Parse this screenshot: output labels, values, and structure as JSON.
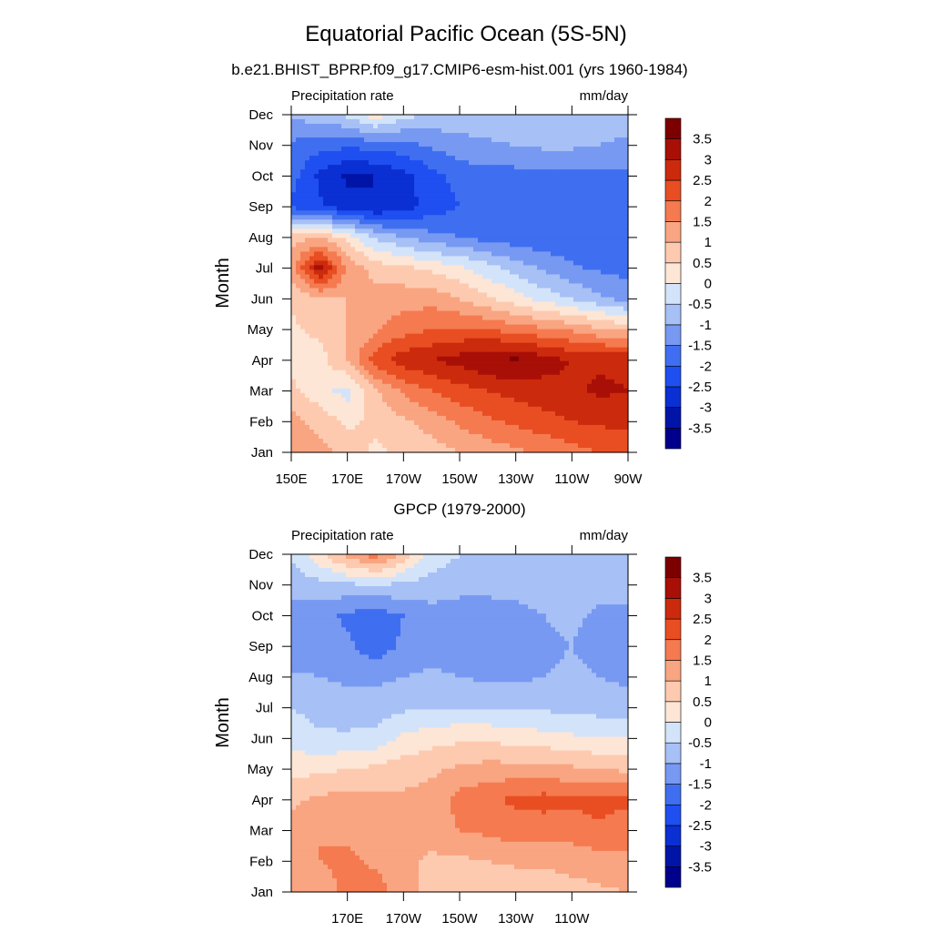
{
  "figure": {
    "title": "Equatorial Pacific Ocean (5S-5N)",
    "subtitle": "b.e21.BHIST_BPRP.f09_g17.CMIP6-esm-hist.001 (yrs 1960-1984)"
  },
  "palette": {
    "levels": [
      -3.5,
      -3,
      -2.5,
      -2,
      -1.5,
      -1,
      -0.5,
      0,
      0.5,
      1,
      1.5,
      2,
      2.5,
      3,
      3.5
    ],
    "level_labels": [
      "-3.5",
      "-3",
      "-2.5",
      "-2",
      "-1.5",
      "-1",
      "-0.5",
      "0",
      "0.5",
      "1",
      "1.5",
      "2",
      "2.5",
      "3",
      "3.5"
    ],
    "colors": [
      "#00008c",
      "#0015a8",
      "#0a2fd2",
      "#1f4ff0",
      "#3f6ff0",
      "#7799f2",
      "#a7c0f5",
      "#d3e4fa",
      "#fde6d6",
      "#fdcab0",
      "#f9a581",
      "#f57a50",
      "#e84e22",
      "#cc2a0c",
      "#a80f06",
      "#7d0000"
    ]
  },
  "chart_data": [
    {
      "type": "heatmap",
      "title": "",
      "left_label": "Precipitation rate",
      "right_label": "mm/day",
      "ylabel": "Month",
      "xlabel": "",
      "xlim": [
        150,
        270
      ],
      "x_ticks": [
        150,
        170,
        190,
        210,
        230,
        250,
        270
      ],
      "x_tick_labels": [
        "150E",
        "170E",
        "170W",
        "150W",
        "130W",
        "110W",
        "90W"
      ],
      "y_tick_labels": [
        "Jan",
        "Feb",
        "Mar",
        "Apr",
        "May",
        "Jun",
        "Jul",
        "Aug",
        "Sep",
        "Oct",
        "Nov",
        "Dec"
      ],
      "units": "mm/day",
      "grid": false,
      "colorbar": "right",
      "x": [
        150,
        160,
        170,
        180,
        190,
        200,
        210,
        220,
        230,
        240,
        250,
        260,
        270
      ],
      "months": [
        "Jan",
        "Feb",
        "Mar",
        "Apr",
        "May",
        "Jun",
        "Jul",
        "Aug",
        "Sep",
        "Oct",
        "Nov",
        "Dec"
      ],
      "z": [
        [
          1.5,
          1.2,
          0.8,
          0.4,
          0.6,
          0.8,
          1.0,
          1.2,
          1.4,
          1.6,
          1.8,
          2.0,
          2.2
        ],
        [
          1.2,
          0.8,
          0.4,
          0.6,
          0.9,
          1.2,
          1.6,
          1.9,
          2.1,
          2.3,
          2.5,
          2.6,
          2.6
        ],
        [
          0.6,
          0.2,
          -0.2,
          0.9,
          1.6,
          2.0,
          2.3,
          2.5,
          2.7,
          2.8,
          2.9,
          3.1,
          3.0
        ],
        [
          0.4,
          0.3,
          1.0,
          2.3,
          2.8,
          3.0,
          3.2,
          3.5,
          3.6,
          3.2,
          3.0,
          2.9,
          2.9
        ],
        [
          0.4,
          0.6,
          1.0,
          1.4,
          1.8,
          2.0,
          2.1,
          2.0,
          1.8,
          1.6,
          1.4,
          1.1,
          0.9
        ],
        [
          0.6,
          0.9,
          1.0,
          1.2,
          1.3,
          1.3,
          1.0,
          0.6,
          0.2,
          -0.2,
          -0.5,
          -0.9,
          -1.2
        ],
        [
          1.2,
          3.3,
          1.4,
          0.8,
          0.6,
          0.4,
          0.1,
          -0.3,
          -0.7,
          -1.1,
          -1.4,
          -1.6,
          -1.7
        ],
        [
          0.8,
          1.0,
          0.3,
          -0.6,
          -1.0,
          -1.3,
          -1.5,
          -1.7,
          -1.8,
          -1.9,
          -1.9,
          -1.9,
          -1.9
        ],
        [
          -2.1,
          -2.4,
          -2.8,
          -3.0,
          -2.7,
          -2.3,
          -2.0,
          -1.9,
          -1.9,
          -1.9,
          -1.9,
          -1.9,
          -1.9
        ],
        [
          -1.8,
          -2.6,
          -3.1,
          -3.0,
          -2.7,
          -2.2,
          -1.8,
          -1.7,
          -1.7,
          -1.7,
          -1.7,
          -1.7,
          -1.6
        ],
        [
          -1.6,
          -1.8,
          -1.9,
          -1.8,
          -1.7,
          -1.4,
          -1.2,
          -1.1,
          -1.0,
          -0.9,
          -0.9,
          -1.0,
          -1.1
        ],
        [
          -0.9,
          -0.7,
          -0.4,
          0.3,
          -0.3,
          -0.6,
          -0.7,
          -0.6,
          -0.5,
          -0.5,
          -0.6,
          -0.7,
          -0.8
        ]
      ]
    },
    {
      "type": "heatmap",
      "title": "GPCP (1979-2000)",
      "left_label": "Precipitation rate",
      "right_label": "mm/day",
      "ylabel": "Month",
      "xlabel": "",
      "xlim": [
        150,
        270
      ],
      "x_ticks": [
        170,
        190,
        210,
        230,
        250
      ],
      "x_tick_labels": [
        "170E",
        "170W",
        "150W",
        "130W",
        "110W"
      ],
      "y_tick_labels": [
        "Jan",
        "Feb",
        "Mar",
        "Apr",
        "May",
        "Jun",
        "Jul",
        "Aug",
        "Sep",
        "Oct",
        "Nov",
        "Dec"
      ],
      "units": "mm/day",
      "grid": false,
      "colorbar": "right",
      "x": [
        150,
        160,
        170,
        180,
        190,
        200,
        210,
        220,
        230,
        240,
        250,
        260,
        270
      ],
      "months": [
        "Jan",
        "Feb",
        "Mar",
        "Apr",
        "May",
        "Jun",
        "Jul",
        "Aug",
        "Sep",
        "Oct",
        "Nov",
        "Dec"
      ],
      "z": [
        [
          1.2,
          1.3,
          1.6,
          1.8,
          1.2,
          0.8,
          0.7,
          0.6,
          0.6,
          0.7,
          0.8,
          0.9,
          1.0
        ],
        [
          1.3,
          1.5,
          1.6,
          1.4,
          1.1,
          0.9,
          0.9,
          1.0,
          1.1,
          1.1,
          1.2,
          1.3,
          1.4
        ],
        [
          1.2,
          1.5,
          1.4,
          1.3,
          1.2,
          1.2,
          1.5,
          1.6,
          1.8,
          1.7,
          1.7,
          1.9,
          1.7
        ],
        [
          0.9,
          1.1,
          1.2,
          1.1,
          1.1,
          1.2,
          1.7,
          1.9,
          2.1,
          2.2,
          2.1,
          2.2,
          2.1
        ],
        [
          0.3,
          0.4,
          0.5,
          0.6,
          0.8,
          0.9,
          1.1,
          1.2,
          1.2,
          1.2,
          1.1,
          1.0,
          0.9
        ],
        [
          -0.2,
          -0.4,
          -0.4,
          -0.3,
          0.1,
          0.3,
          0.4,
          0.4,
          0.3,
          0.2,
          0.1,
          0.0,
          0.0
        ],
        [
          -0.5,
          -0.7,
          -0.8,
          -0.8,
          -0.6,
          -0.5,
          -0.5,
          -0.5,
          -0.6,
          -0.6,
          -0.6,
          -0.7,
          -0.8
        ],
        [
          -0.9,
          -1.0,
          -1.1,
          -1.1,
          -1.0,
          -0.9,
          -1.0,
          -1.1,
          -1.1,
          -1.0,
          -0.9,
          -1.0,
          -1.1
        ],
        [
          -1.4,
          -1.4,
          -1.4,
          -1.8,
          -1.4,
          -1.2,
          -1.3,
          -1.4,
          -1.3,
          -1.1,
          -1.0,
          -1.2,
          -1.3
        ],
        [
          -1.2,
          -1.3,
          -1.6,
          -1.8,
          -1.5,
          -1.2,
          -1.3,
          -1.3,
          -1.2,
          -1.0,
          -0.9,
          -1.1,
          -1.1
        ],
        [
          -0.8,
          -0.7,
          -0.6,
          -0.5,
          -0.6,
          -0.7,
          -0.8,
          -0.8,
          -0.8,
          -0.7,
          -0.7,
          -0.8,
          -0.8
        ],
        [
          -0.4,
          0.4,
          1.2,
          1.8,
          0.8,
          -0.2,
          -0.5,
          -0.5,
          -0.5,
          -0.5,
          -0.5,
          -0.5,
          -0.5
        ]
      ]
    }
  ]
}
